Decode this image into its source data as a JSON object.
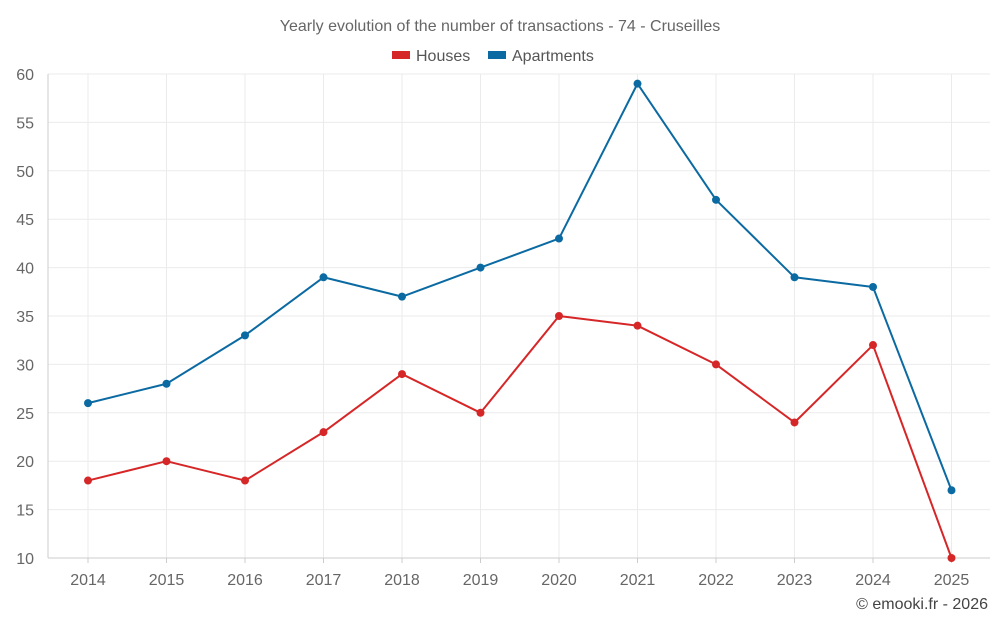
{
  "chart_data": {
    "type": "line",
    "title": "Yearly evolution of the number of transactions - 74 - Cruseilles",
    "categories": [
      "2014",
      "2015",
      "2016",
      "2017",
      "2018",
      "2019",
      "2020",
      "2021",
      "2022",
      "2023",
      "2024",
      "2025"
    ],
    "series": [
      {
        "name": "Houses",
        "color": "#d62728",
        "values": [
          18,
          20,
          18,
          23,
          29,
          25,
          35,
          34,
          30,
          24,
          32,
          10
        ]
      },
      {
        "name": "Apartments",
        "color": "#0b6aa2",
        "values": [
          26,
          28,
          33,
          39,
          37,
          40,
          43,
          59,
          47,
          39,
          38,
          17
        ]
      }
    ],
    "ylim": [
      10,
      60
    ],
    "yticks": [
      10,
      15,
      20,
      25,
      30,
      35,
      40,
      45,
      50,
      55,
      60
    ],
    "xlabel": "",
    "ylabel": "",
    "legend": "top-center",
    "grid": true
  },
  "credit": "© emooki.fr - 2026"
}
